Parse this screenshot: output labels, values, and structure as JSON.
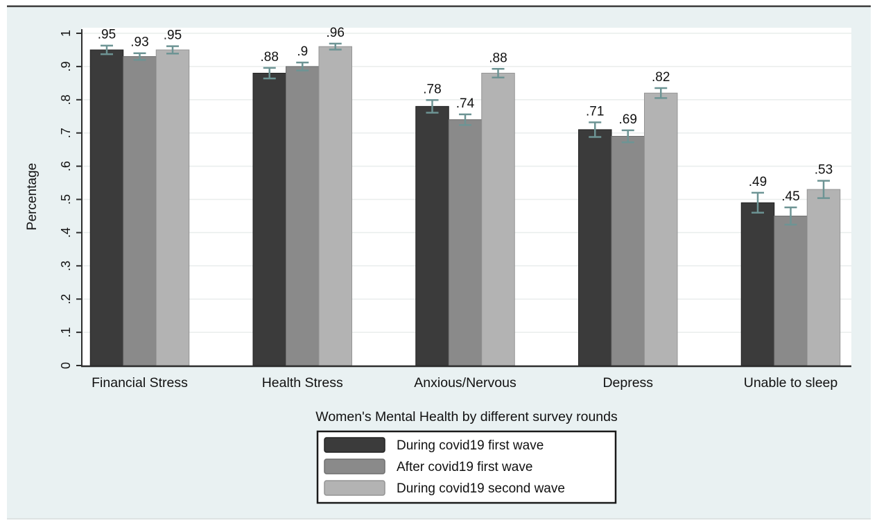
{
  "figure": {
    "background_color": "#e9f1f2",
    "plot_background_color": "#ffffff",
    "grid_color": "#e9edec",
    "axis_color": "#2e2e2e",
    "text_color": "#111111",
    "top_rule_color": "#3a3a3a",
    "bottom_rule_color": "#dde3e2"
  },
  "chart_data": {
    "type": "bar",
    "title": "",
    "xlabel": "Women's Mental Health by different survey rounds",
    "ylabel": "Percentage",
    "categories": [
      "Financial Stress",
      "Health Stress",
      "Anxious/Nervous",
      "Depress",
      "Unable to sleep"
    ],
    "series": [
      {
        "name": "During covid19 first wave",
        "color": "#3b3b3b",
        "border_color": "#232323",
        "values": [
          0.95,
          0.88,
          0.78,
          0.71,
          0.49
        ],
        "value_labels": [
          ".95",
          ".88",
          ".78",
          ".71",
          ".49"
        ],
        "errors": [
          0.013,
          0.016,
          0.019,
          0.022,
          0.03
        ]
      },
      {
        "name": "After covid19 first wave",
        "color": "#8a8a8a",
        "border_color": "#6e6e6e",
        "values": [
          0.93,
          0.9,
          0.74,
          0.69,
          0.45
        ],
        "value_labels": [
          ".93",
          ".9",
          ".74",
          ".69",
          ".45"
        ],
        "errors": [
          0.01,
          0.012,
          0.016,
          0.018,
          0.026
        ]
      },
      {
        "name": "During covid19 second wave",
        "color": "#b3b3b3",
        "border_color": "#949494",
        "values": [
          0.95,
          0.96,
          0.88,
          0.82,
          0.53
        ],
        "value_labels": [
          ".95",
          ".96",
          ".88",
          ".82",
          ".53"
        ],
        "errors": [
          0.011,
          0.009,
          0.013,
          0.015,
          0.026
        ]
      }
    ],
    "y_ticks": [
      {
        "value": 0.0,
        "label": "0"
      },
      {
        "value": 0.1,
        "label": ".1"
      },
      {
        "value": 0.2,
        "label": ".2"
      },
      {
        "value": 0.3,
        "label": ".3"
      },
      {
        "value": 0.4,
        "label": ".4"
      },
      {
        "value": 0.5,
        "label": ".5"
      },
      {
        "value": 0.6,
        "label": ".6"
      },
      {
        "value": 0.7,
        "label": ".7"
      },
      {
        "value": 0.8,
        "label": ".8"
      },
      {
        "value": 0.9,
        "label": ".9"
      },
      {
        "value": 1.0,
        "label": "1"
      }
    ],
    "ylim": [
      0,
      1
    ],
    "error_bar_color": "#6d9494",
    "grid": true,
    "legend_position": "bottom-center"
  },
  "legend": {
    "background_color": "#ffffff",
    "border_color": "#1a1a1a"
  }
}
